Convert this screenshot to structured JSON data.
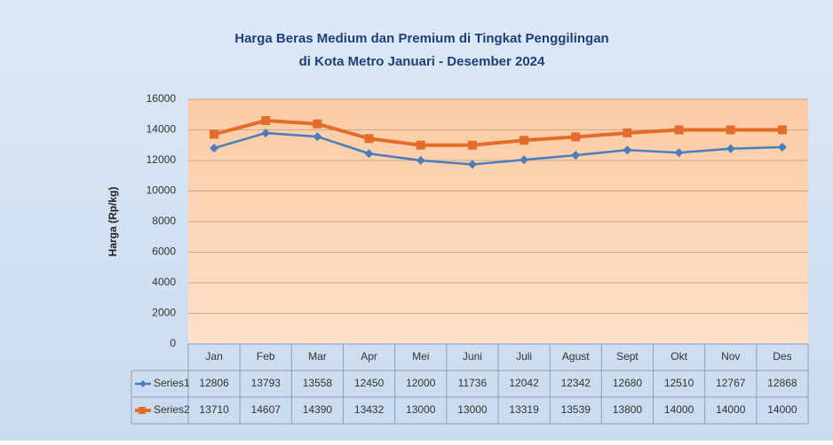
{
  "chart_data": {
    "type": "line",
    "title": "Harga Beras Medium dan Premium  di Tingkat Penggilingan",
    "subtitle": "di Kota Metro Januari - Desember 2024",
    "y_label": "Harga (Rp/kg)",
    "categories": [
      "Jan",
      "Feb",
      "Mar",
      "Apr",
      "Mei",
      "Juni",
      "Juli",
      "Agust",
      "Sept",
      "Okt",
      "Nov",
      "Des"
    ],
    "series": [
      {
        "name": "Series1",
        "color": "#4a7ebb",
        "marker": "diamond",
        "values": [
          12806,
          13793,
          13558,
          12450,
          12000,
          11736,
          12042,
          12342,
          12680,
          12510,
          12767,
          12868
        ]
      },
      {
        "name": "Series2",
        "color": "#e46c2a",
        "marker": "square",
        "values": [
          13710,
          14607,
          14390,
          13432,
          13000,
          13000,
          13319,
          13539,
          13800,
          14000,
          14000,
          14000
        ]
      }
    ],
    "ylim": [
      0,
      16000
    ],
    "yticks": [
      0,
      2000,
      4000,
      6000,
      8000,
      10000,
      12000,
      14000,
      16000
    ],
    "grid": true,
    "data_table": true
  }
}
